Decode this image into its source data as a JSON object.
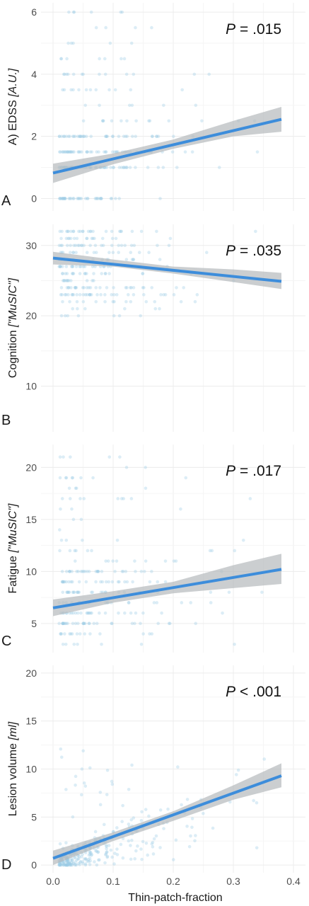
{
  "figure": {
    "xlabel": "Thin-patch-fraction",
    "x_ticks": [
      "0.0",
      "0.1",
      "0.2",
      "0.3",
      "0.4"
    ],
    "colors": {
      "line": "#3d8ddb",
      "band": "#b5b9bc",
      "points": "#9bcbe6",
      "grid": "#ececec"
    }
  },
  "chart_data": [
    {
      "type": "scatter",
      "letter": "A",
      "ylabel_plain": "A) EDSS ",
      "ylabel_italic": "[A.U.]",
      "p_prefix": "P",
      "p_rest": " = .015",
      "xlim": [
        -0.02,
        0.42
      ],
      "ylim": [
        -0.4,
        6.3
      ],
      "y_ticks": [
        0,
        2,
        4,
        6
      ],
      "fit": {
        "x": [
          0.0,
          0.38
        ],
        "y": [
          0.82,
          2.55
        ]
      },
      "ci": {
        "x": [
          0.0,
          0.1,
          0.2,
          0.3,
          0.38
        ],
        "lower": [
          0.5,
          1.1,
          1.6,
          2.0,
          2.15
        ],
        "upper": [
          1.12,
          1.45,
          1.9,
          2.5,
          2.95
        ]
      },
      "points": {
        "y_levels": [
          0,
          1,
          1.5,
          2,
          2.5,
          3,
          3.5,
          4,
          4.5,
          5,
          5.5,
          6
        ],
        "x_max": 0.34,
        "count": 260
      }
    },
    {
      "type": "scatter",
      "letter": "B",
      "ylabel_plain": "Cognition ",
      "ylabel_italic": "[\"MuSIC\"]",
      "p_prefix": "P",
      "p_rest": " = .035",
      "xlim": [
        -0.02,
        0.42
      ],
      "ylim": [
        3.5,
        33
      ],
      "y_ticks": [
        10,
        20,
        30
      ],
      "fit": {
        "x": [
          0.0,
          0.38
        ],
        "y": [
          28.2,
          24.9
        ]
      },
      "ci": {
        "x": [
          0.0,
          0.1,
          0.2,
          0.3,
          0.38
        ],
        "lower": [
          27.3,
          27.0,
          26.0,
          24.8,
          23.8
        ],
        "upper": [
          29.1,
          28.0,
          27.0,
          26.6,
          26.1
        ]
      },
      "points": {
        "y_levels": [
          20,
          21,
          22,
          23,
          24,
          25,
          26,
          27,
          28,
          29,
          30,
          31,
          32
        ],
        "x_max": 0.35,
        "count": 240
      }
    },
    {
      "type": "scatter",
      "letter": "C",
      "ylabel_plain": "Fatigue ",
      "ylabel_italic": "[\"MuSIC\"]",
      "p_prefix": "P",
      "p_rest": " = .017",
      "xlim": [
        -0.02,
        0.42
      ],
      "ylim": [
        2.2,
        22.2
      ],
      "y_ticks": [
        5,
        10,
        15,
        20
      ],
      "fit": {
        "x": [
          0.0,
          0.38
        ],
        "y": [
          6.5,
          10.2
        ]
      },
      "ci": {
        "x": [
          0.0,
          0.1,
          0.2,
          0.3,
          0.38
        ],
        "lower": [
          5.7,
          7.0,
          7.9,
          8.4,
          8.8
        ],
        "upper": [
          7.3,
          8.1,
          9.0,
          10.6,
          11.7
        ]
      },
      "points": {
        "y_levels": [
          3,
          4,
          5,
          6,
          7,
          8,
          9,
          10,
          11,
          12,
          13,
          14,
          15,
          16,
          17,
          18,
          19,
          20,
          21
        ],
        "x_max": 0.35,
        "count": 240
      }
    },
    {
      "type": "scatter",
      "letter": "D",
      "ylabel_plain": "Lesion volume ",
      "ylabel_italic": "[ml]",
      "p_prefix": "P",
      "p_rest": " < .001",
      "xlim": [
        -0.02,
        0.42
      ],
      "ylim": [
        -0.8,
        20.8
      ],
      "y_ticks": [
        0,
        5,
        10,
        15,
        20
      ],
      "fit": {
        "x": [
          0.0,
          0.38
        ],
        "y": [
          0.7,
          9.3
        ]
      },
      "ci": {
        "x": [
          0.0,
          0.1,
          0.2,
          0.3,
          0.38
        ],
        "lower": [
          0.0,
          2.5,
          4.6,
          6.8,
          8.1
        ],
        "upper": [
          1.5,
          3.4,
          5.6,
          8.3,
          10.6
        ]
      },
      "points": {
        "y_levels": [],
        "x_max": 0.36,
        "count": 320
      }
    }
  ]
}
